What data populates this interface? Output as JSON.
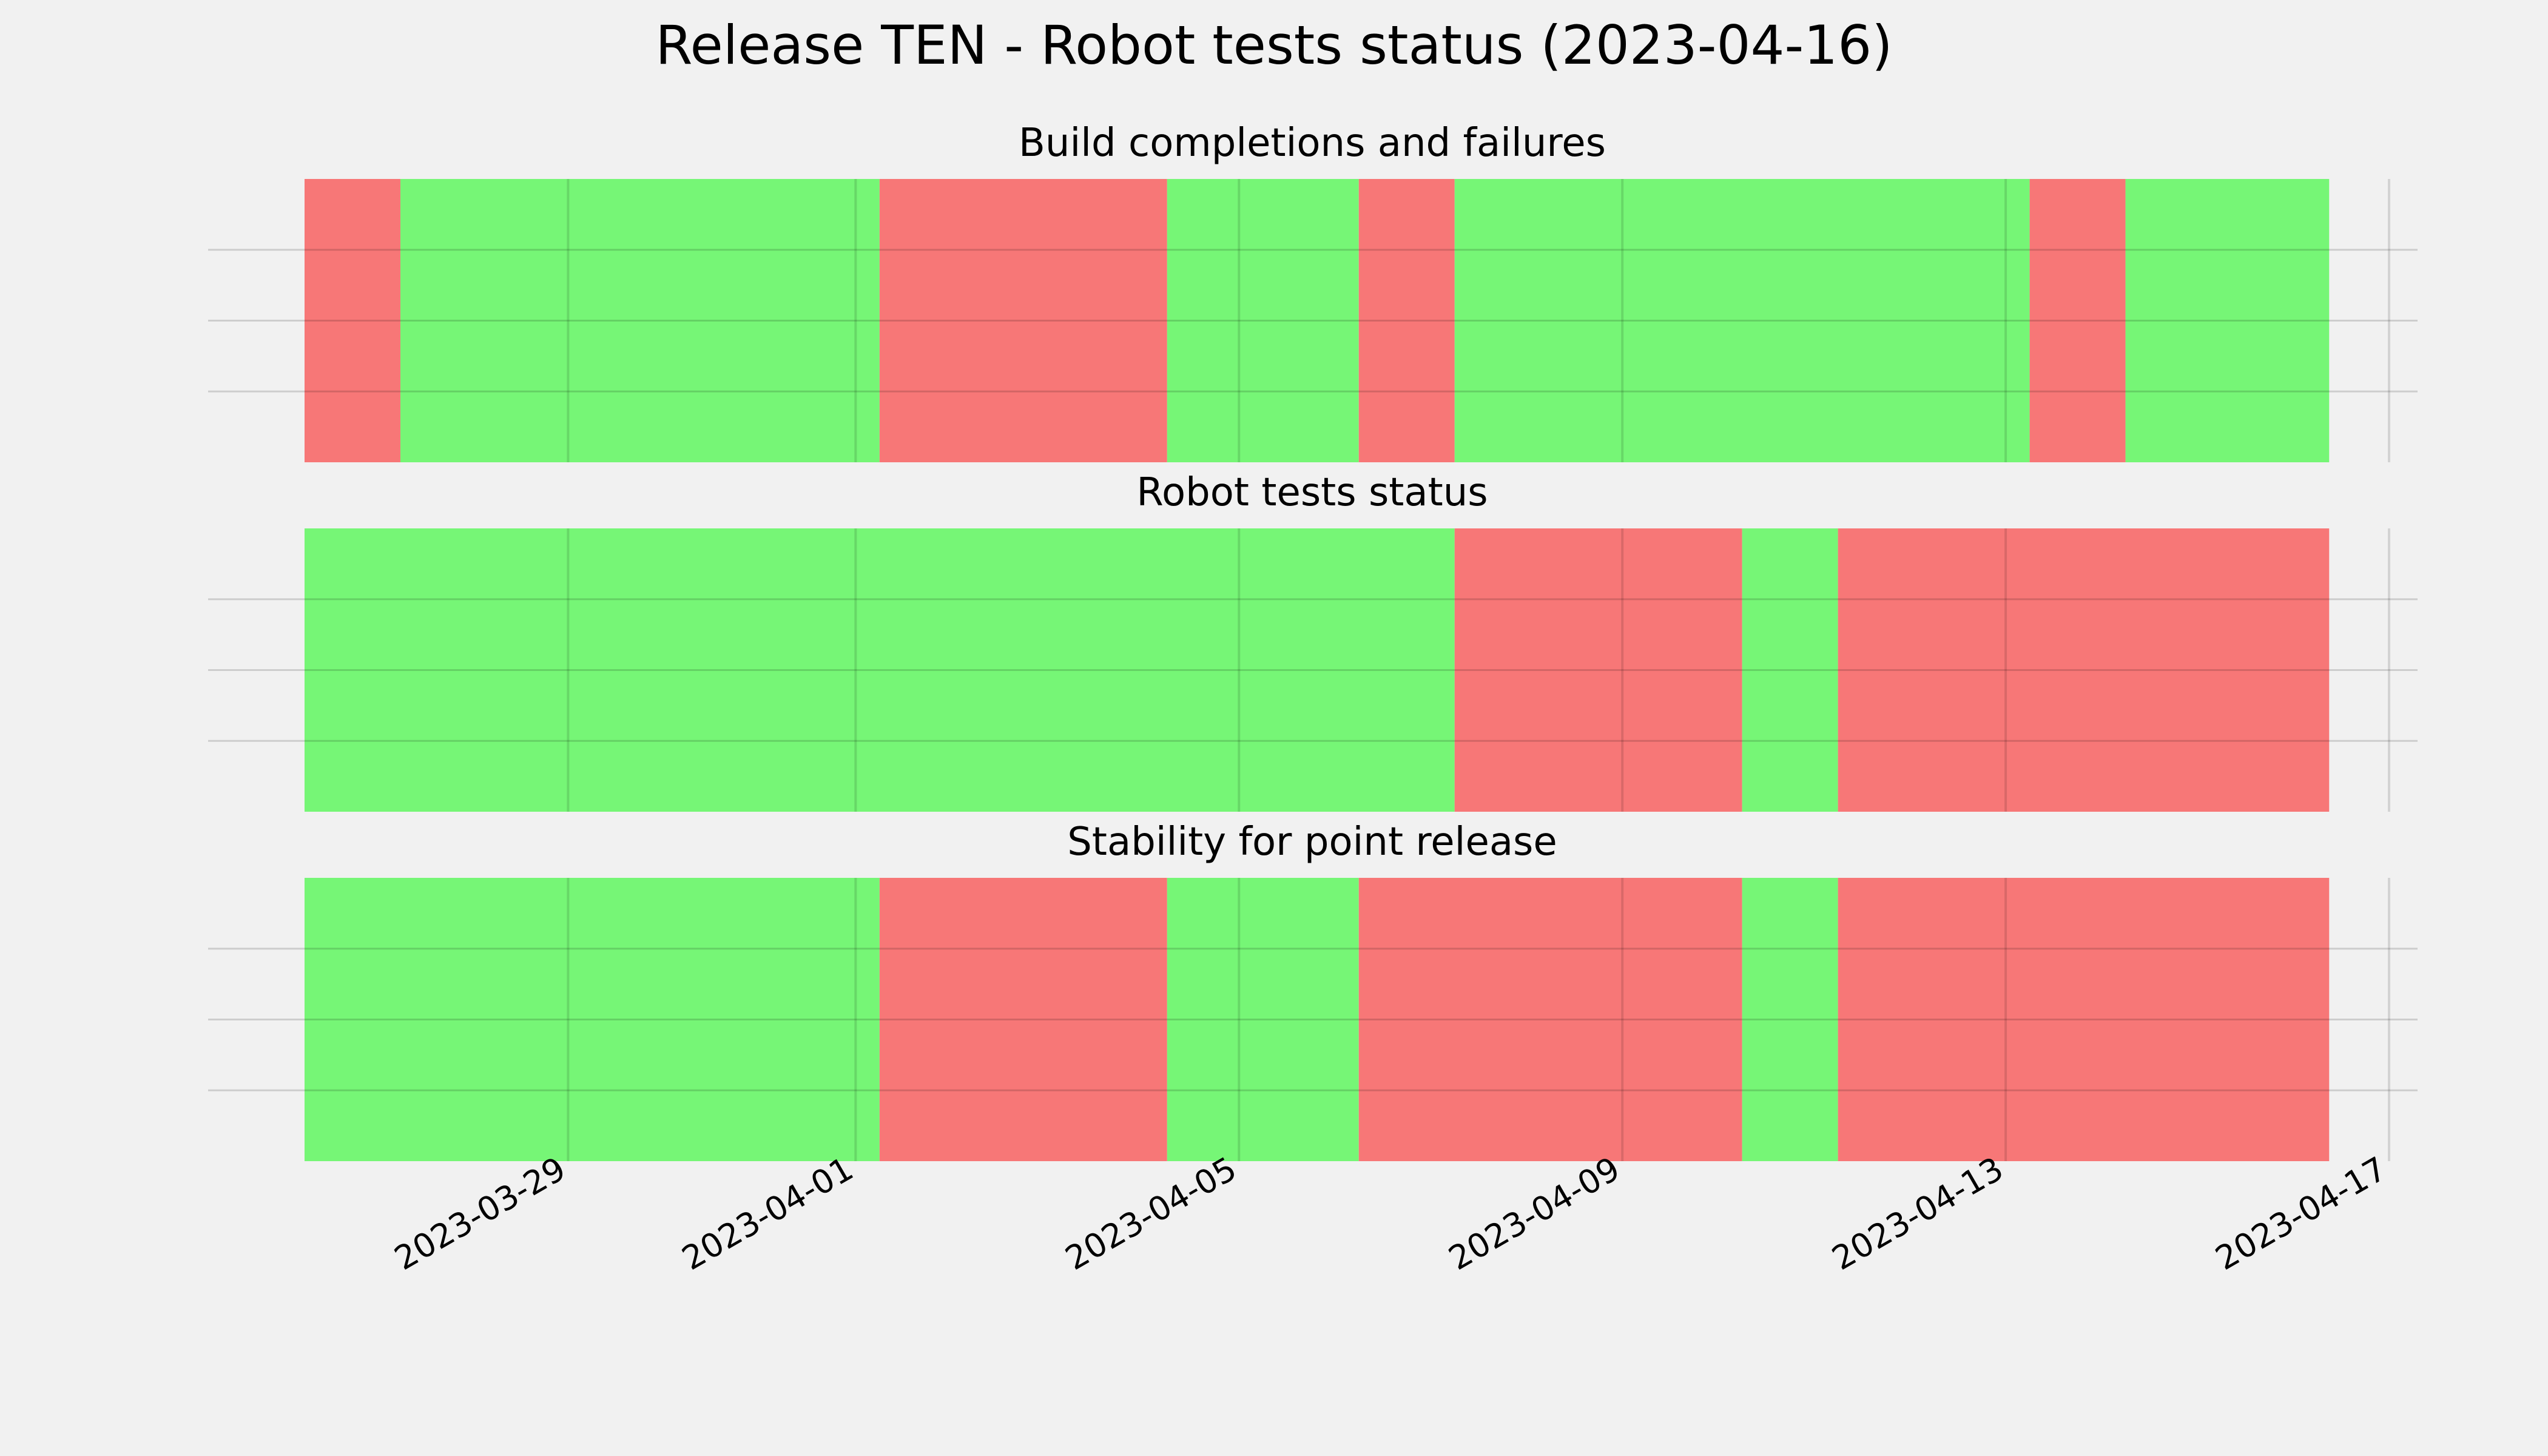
{
  "chart_data": {
    "type": "timeline",
    "title": "Release TEN - Robot tests status (2023-04-16)",
    "x_axis": {
      "type": "date",
      "range": [
        "2023-03-26T06:00",
        "2023-04-17T00:00"
      ],
      "ticks": [
        "2023-03-29",
        "2023-04-01",
        "2023-04-05",
        "2023-04-09",
        "2023-04-13",
        "2023-04-17"
      ]
    },
    "grid": true,
    "colors": {
      "pass": "#76f676",
      "fail": "#f77777",
      "background": "#f1f1f1",
      "grid": "#cbcbcb"
    },
    "panels": [
      {
        "title": "Build completions and failures",
        "segments": [
          {
            "start": "2023-03-26T06:00",
            "end": "2023-03-27T06:00",
            "status": "fail"
          },
          {
            "start": "2023-03-27T06:00",
            "end": "2023-04-01T06:00",
            "status": "pass"
          },
          {
            "start": "2023-04-01T06:00",
            "end": "2023-04-04T06:00",
            "status": "fail"
          },
          {
            "start": "2023-04-04T06:00",
            "end": "2023-04-06T06:00",
            "status": "pass"
          },
          {
            "start": "2023-04-06T06:00",
            "end": "2023-04-07T06:00",
            "status": "fail"
          },
          {
            "start": "2023-04-07T06:00",
            "end": "2023-04-13T06:00",
            "status": "pass"
          },
          {
            "start": "2023-04-13T06:00",
            "end": "2023-04-14T06:00",
            "status": "fail"
          },
          {
            "start": "2023-04-14T06:00",
            "end": "2023-04-16T09:00",
            "status": "pass"
          }
        ]
      },
      {
        "title": "Robot tests status",
        "segments": [
          {
            "start": "2023-03-26T06:00",
            "end": "2023-04-07T06:00",
            "status": "pass"
          },
          {
            "start": "2023-04-07T06:00",
            "end": "2023-04-10T06:00",
            "status": "fail"
          },
          {
            "start": "2023-04-10T06:00",
            "end": "2023-04-11T06:00",
            "status": "pass"
          },
          {
            "start": "2023-04-11T06:00",
            "end": "2023-04-16T09:00",
            "status": "fail"
          }
        ]
      },
      {
        "title": "Stability for point release",
        "segments": [
          {
            "start": "2023-03-26T06:00",
            "end": "2023-04-01T06:00",
            "status": "pass"
          },
          {
            "start": "2023-04-01T06:00",
            "end": "2023-04-04T06:00",
            "status": "fail"
          },
          {
            "start": "2023-04-04T06:00",
            "end": "2023-04-06T06:00",
            "status": "pass"
          },
          {
            "start": "2023-04-06T06:00",
            "end": "2023-04-10T06:00",
            "status": "fail"
          },
          {
            "start": "2023-04-10T06:00",
            "end": "2023-04-11T06:00",
            "status": "pass"
          },
          {
            "start": "2023-04-11T06:00",
            "end": "2023-04-16T09:00",
            "status": "fail"
          }
        ]
      }
    ]
  }
}
